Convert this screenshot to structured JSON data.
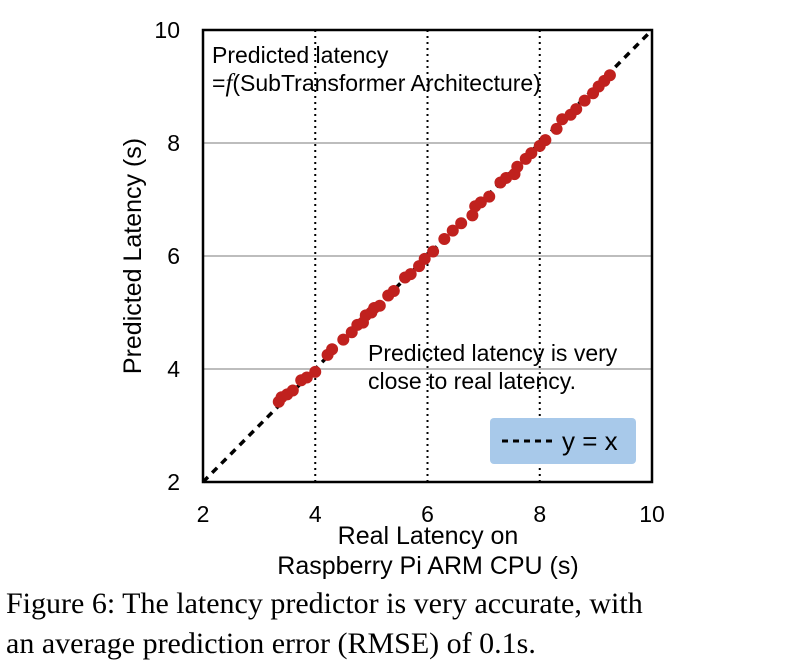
{
  "chart_data": {
    "type": "scatter",
    "xlabel_line1": "Real Latency on",
    "xlabel_line2": "Raspberry Pi ARM CPU (s)",
    "ylabel": "Predicted Latency (s)",
    "xlim": [
      2,
      10
    ],
    "ylim": [
      2,
      10
    ],
    "x_ticks": [
      "2",
      "4",
      "6",
      "8",
      "10"
    ],
    "y_ticks": [
      "2",
      "4",
      "6",
      "8",
      "10"
    ],
    "grid": {
      "x": "dotted",
      "y": "solid"
    },
    "annotation_top_line1": "Predicted latency",
    "annotation_top_prefix": "=",
    "annotation_top_func": "f",
    "annotation_top_suffix": "(SubTransformer Architecture)",
    "annotation_mid_line1": "Predicted latency is very",
    "annotation_mid_line2": "close to real latency.",
    "legend_label": "y = x",
    "legend_placement": "bottom-right",
    "marker_color": "#c0211e",
    "legend_color": "#a8c9ea",
    "points": [
      [
        3.35,
        3.42
      ],
      [
        3.4,
        3.5
      ],
      [
        3.5,
        3.55
      ],
      [
        3.6,
        3.62
      ],
      [
        3.75,
        3.8
      ],
      [
        3.85,
        3.85
      ],
      [
        4.0,
        3.95
      ],
      [
        4.22,
        4.25
      ],
      [
        4.3,
        4.35
      ],
      [
        4.5,
        4.52
      ],
      [
        4.65,
        4.65
      ],
      [
        4.75,
        4.78
      ],
      [
        4.85,
        4.82
      ],
      [
        4.9,
        4.95
      ],
      [
        5.0,
        5.0
      ],
      [
        5.05,
        5.08
      ],
      [
        5.15,
        5.12
      ],
      [
        5.3,
        5.3
      ],
      [
        5.4,
        5.38
      ],
      [
        5.6,
        5.62
      ],
      [
        5.7,
        5.68
      ],
      [
        5.85,
        5.82
      ],
      [
        5.95,
        5.95
      ],
      [
        6.1,
        6.08
      ],
      [
        6.3,
        6.3
      ],
      [
        6.45,
        6.45
      ],
      [
        6.6,
        6.58
      ],
      [
        6.8,
        6.72
      ],
      [
        6.85,
        6.88
      ],
      [
        6.95,
        6.95
      ],
      [
        7.1,
        7.05
      ],
      [
        7.3,
        7.3
      ],
      [
        7.4,
        7.38
      ],
      [
        7.55,
        7.45
      ],
      [
        7.6,
        7.58
      ],
      [
        7.75,
        7.72
      ],
      [
        7.85,
        7.82
      ],
      [
        8.0,
        7.95
      ],
      [
        8.1,
        8.05
      ],
      [
        8.3,
        8.25
      ],
      [
        8.4,
        8.42
      ],
      [
        8.55,
        8.5
      ],
      [
        8.65,
        8.6
      ],
      [
        8.8,
        8.75
      ],
      [
        8.95,
        8.88
      ],
      [
        9.05,
        9.0
      ],
      [
        9.15,
        9.1
      ],
      [
        9.25,
        9.2
      ]
    ]
  },
  "caption_line1": "Figure 6: The latency predictor is very accurate, with",
  "caption_line2": "an average prediction error (RMSE) of 0.1s."
}
